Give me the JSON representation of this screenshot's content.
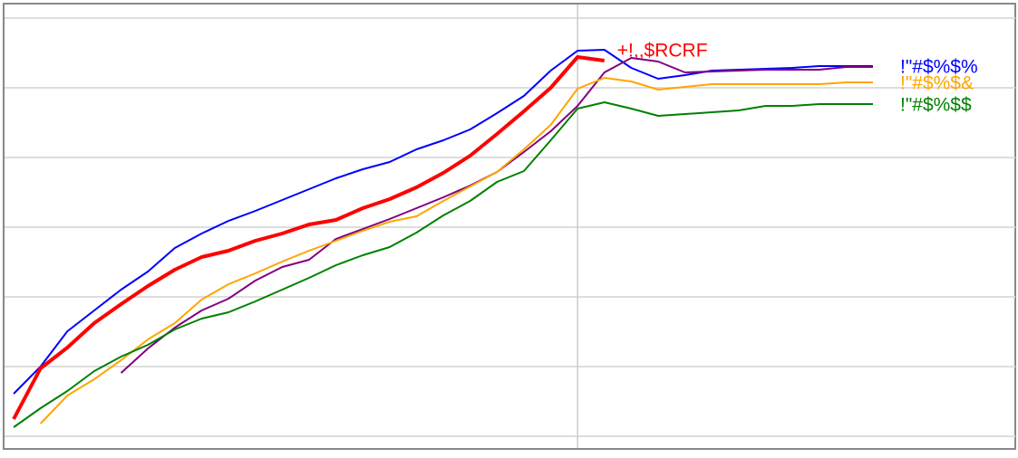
{
  "chart_data": {
    "type": "line",
    "x": [
      0,
      1,
      2,
      3,
      4,
      5,
      6,
      7,
      8,
      9,
      10,
      11,
      12,
      13,
      14,
      15,
      16,
      17,
      18,
      19,
      20,
      21,
      22,
      23,
      24,
      25,
      26,
      27,
      28,
      29,
      30,
      31,
      32
    ],
    "xlim": [
      -0.34,
      37.3
    ],
    "xticks": [
      21
    ],
    "ylim": [
      -13,
      477
    ],
    "yticks": [
      0,
      77,
      154,
      231,
      308,
      385,
      462
    ],
    "grid": true,
    "series": [
      {
        "name": "!\"#$%$%",
        "color": "#0000ff",
        "width": 2,
        "values": [
          47,
          77,
          116,
          139,
          162,
          182,
          208,
          224,
          238,
          249,
          261,
          273,
          285,
          295,
          303,
          317,
          327,
          339,
          357,
          376,
          404,
          426,
          427,
          407,
          395,
          399,
          404,
          405,
          406,
          407,
          409,
          409,
          409
        ]
      },
      {
        "name": "+!,,$RCRF",
        "color": "#ff0000",
        "width": 4,
        "values": [
          19,
          75,
          98,
          125,
          146,
          166,
          184,
          198,
          205,
          216,
          224,
          234,
          239,
          252,
          262,
          275,
          291,
          310,
          334,
          359,
          385,
          419,
          415,
          null,
          null,
          null,
          null,
          null,
          null,
          null,
          null,
          null,
          null
        ]
      },
      {
        "name": null,
        "color": "#800080",
        "width": 2,
        "values": [
          null,
          null,
          null,
          null,
          70,
          97,
          120,
          139,
          152,
          172,
          187,
          195,
          218,
          229,
          240,
          252,
          264,
          277,
          292,
          314,
          337,
          365,
          402,
          418,
          414,
          402,
          403,
          404,
          405,
          405,
          405,
          408,
          408
        ]
      },
      {
        "name": "!\"#$%$&",
        "color": "#ffa500",
        "width": 2,
        "values": [
          null,
          14,
          45,
          63,
          84,
          107,
          125,
          151,
          168,
          180,
          193,
          205,
          216,
          227,
          237,
          243,
          260,
          276,
          292,
          317,
          344,
          384,
          396,
          392,
          383,
          386,
          389,
          389,
          389,
          389,
          389,
          391,
          391
        ]
      },
      {
        "name": "!\"#$%$$",
        "color": "#008000",
        "width": 2,
        "values": [
          10,
          31,
          50,
          72,
          88,
          101,
          118,
          130,
          137,
          149,
          162,
          175,
          189,
          200,
          209,
          225,
          244,
          260,
          281,
          293,
          327,
          362,
          369,
          362,
          354,
          356,
          358,
          360,
          365,
          365,
          367,
          367,
          367
        ]
      }
    ]
  }
}
